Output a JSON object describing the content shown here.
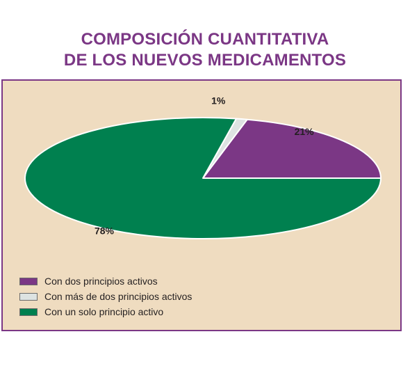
{
  "chart_data": {
    "type": "pie",
    "title": [
      "COMPOSICIÓN CUANTITATIVA",
      "DE LOS NUEVOS MEDICAMENTOS"
    ],
    "slices": [
      {
        "label": "Con dos principios activos",
        "value": 21,
        "display": "21%",
        "color": "#7b3785"
      },
      {
        "label": "Con más de dos principios activos",
        "value": 1,
        "display": "1%",
        "color": "#dde3e2"
      },
      {
        "label": "Con un solo principio activo",
        "value": 78,
        "display": "78%",
        "color": "#00804f"
      }
    ],
    "legend_position": "bottom-left",
    "background": "#efdcc0",
    "border_color": "#7b3785"
  }
}
